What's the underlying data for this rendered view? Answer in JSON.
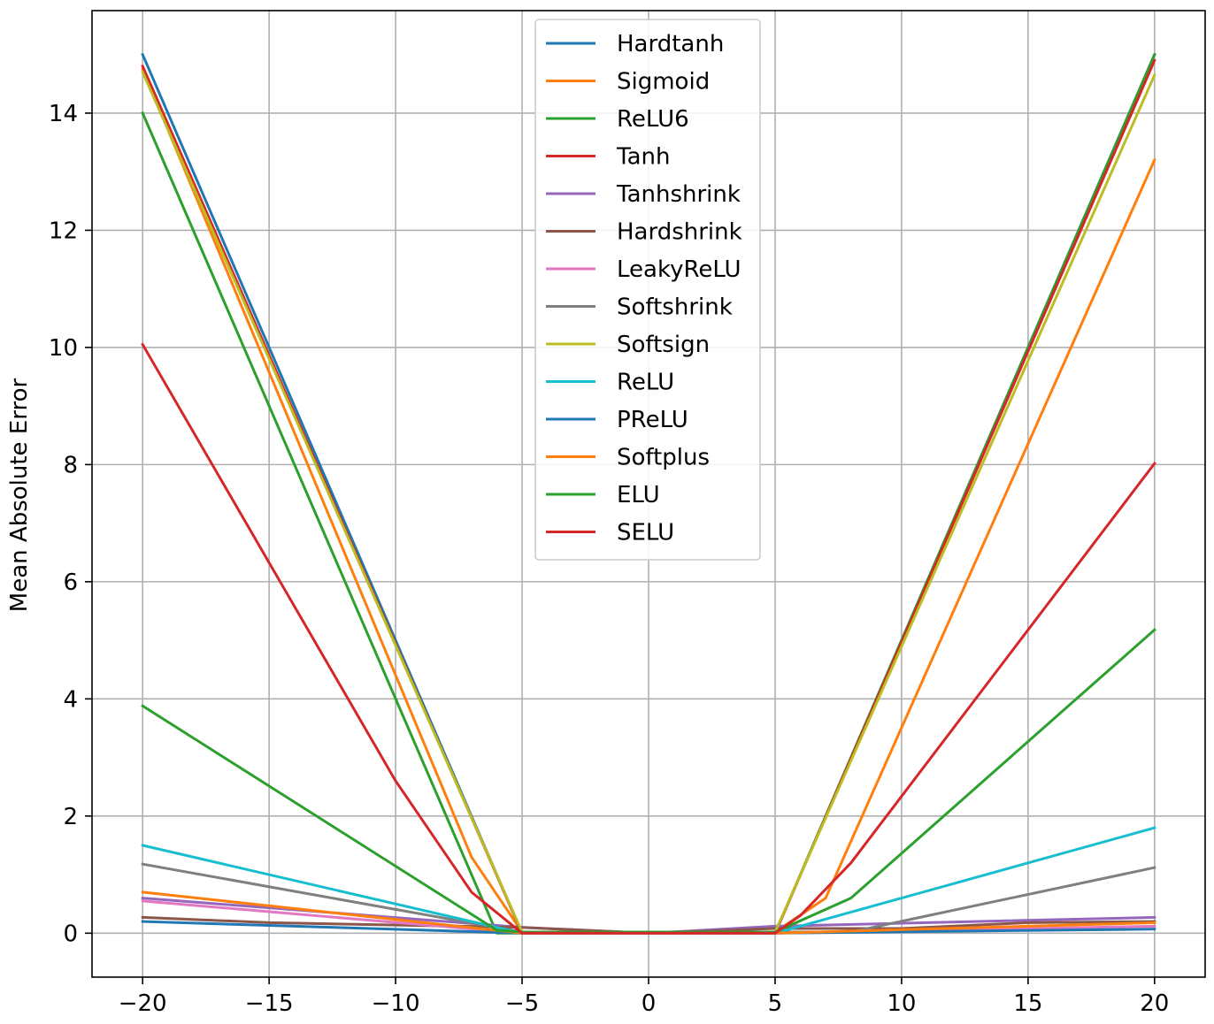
{
  "chart_data": {
    "type": "line",
    "title": "",
    "xlabel": "",
    "ylabel": "Mean Absolute Error",
    "xlim": [
      -22,
      22
    ],
    "ylim": [
      -0.75,
      15.75
    ],
    "xticks": [
      -20,
      -15,
      -10,
      -5,
      0,
      5,
      10,
      15,
      20
    ],
    "xtick_labels": [
      "−20",
      "−15",
      "−10",
      "−5",
      "0",
      "5",
      "10",
      "15",
      "20"
    ],
    "yticks": [
      0,
      2,
      4,
      6,
      8,
      10,
      12,
      14
    ],
    "ytick_labels": [
      "0",
      "2",
      "4",
      "6",
      "8",
      "10",
      "12",
      "14"
    ],
    "grid": true,
    "legend_position": "top-center",
    "series": [
      {
        "name": "Hardtanh",
        "color": "#1f77b4",
        "points": [
          [
            -20,
            15.0
          ],
          [
            -5,
            0.0
          ],
          [
            5,
            0.0
          ],
          [
            20,
            15.0
          ]
        ]
      },
      {
        "name": "Sigmoid",
        "color": "#ff7f0e",
        "points": [
          [
            -20,
            14.75
          ],
          [
            -7,
            1.3
          ],
          [
            -5,
            0.02
          ],
          [
            5,
            0.02
          ],
          [
            7,
            0.6
          ],
          [
            20,
            13.2
          ]
        ]
      },
      {
        "name": "ReLU6",
        "color": "#2ca02c",
        "points": [
          [
            -20,
            14.0
          ],
          [
            -6,
            0.0
          ],
          [
            -5,
            0.0
          ],
          [
            5,
            0.0
          ],
          [
            20,
            15.0
          ]
        ]
      },
      {
        "name": "Tanh",
        "color": "#d62728",
        "points": [
          [
            -20,
            14.8
          ],
          [
            -5,
            0.0
          ],
          [
            5,
            0.0
          ],
          [
            20,
            14.9
          ]
        ]
      },
      {
        "name": "Tanhshrink",
        "color": "#9467bd",
        "points": [
          [
            -20,
            0.6
          ],
          [
            -5,
            0.1
          ],
          [
            0,
            0.0
          ],
          [
            5,
            0.12
          ],
          [
            20,
            0.27
          ]
        ]
      },
      {
        "name": "Hardshrink",
        "color": "#8c564b",
        "points": [
          [
            -20,
            0.27
          ],
          [
            -15,
            0.18
          ],
          [
            -5,
            0.1
          ],
          [
            0,
            0.0
          ],
          [
            5,
            0.08
          ],
          [
            10,
            0.08
          ],
          [
            15,
            0.18
          ],
          [
            20,
            0.2
          ]
        ]
      },
      {
        "name": "LeakyReLU",
        "color": "#e377c2",
        "points": [
          [
            -20,
            0.55
          ],
          [
            -5,
            0.0
          ],
          [
            5,
            0.0
          ],
          [
            20,
            0.12
          ]
        ]
      },
      {
        "name": "Softshrink",
        "color": "#7f7f7f",
        "points": [
          [
            -20,
            1.18
          ],
          [
            -5,
            0.02
          ],
          [
            0,
            0.0
          ],
          [
            5,
            0.02
          ],
          [
            8,
            0.02
          ],
          [
            20,
            1.12
          ]
        ]
      },
      {
        "name": "Softsign",
        "color": "#bcbd22",
        "points": [
          [
            -20,
            14.7
          ],
          [
            -5,
            0.02
          ],
          [
            5,
            0.02
          ],
          [
            20,
            14.65
          ]
        ]
      },
      {
        "name": "ReLU",
        "color": "#17becf",
        "points": [
          [
            -20,
            1.5
          ],
          [
            -5,
            0.0
          ],
          [
            5,
            0.0
          ],
          [
            20,
            1.8
          ]
        ]
      },
      {
        "name": "PReLU",
        "color": "#1f77b4",
        "points": [
          [
            -20,
            0.2
          ],
          [
            -5,
            0.0
          ],
          [
            5,
            0.0
          ],
          [
            20,
            0.07
          ]
        ]
      },
      {
        "name": "Softplus",
        "color": "#ff7f0e",
        "points": [
          [
            -20,
            0.7
          ],
          [
            -5,
            0.0
          ],
          [
            5,
            0.0
          ],
          [
            20,
            0.18
          ]
        ]
      },
      {
        "name": "ELU",
        "color": "#2ca02c",
        "points": [
          [
            -20,
            3.88
          ],
          [
            -6,
            0.05
          ],
          [
            -5,
            0.02
          ],
          [
            5,
            0.02
          ],
          [
            8,
            0.6
          ],
          [
            20,
            5.18
          ]
        ]
      },
      {
        "name": "SELU",
        "color": "#d62728",
        "points": [
          [
            -20,
            10.05
          ],
          [
            -10,
            2.6
          ],
          [
            -7,
            0.7
          ],
          [
            -5,
            0.0
          ],
          [
            5,
            0.0
          ],
          [
            6,
            0.3
          ],
          [
            8,
            1.2
          ],
          [
            20,
            8.02
          ]
        ]
      }
    ]
  }
}
